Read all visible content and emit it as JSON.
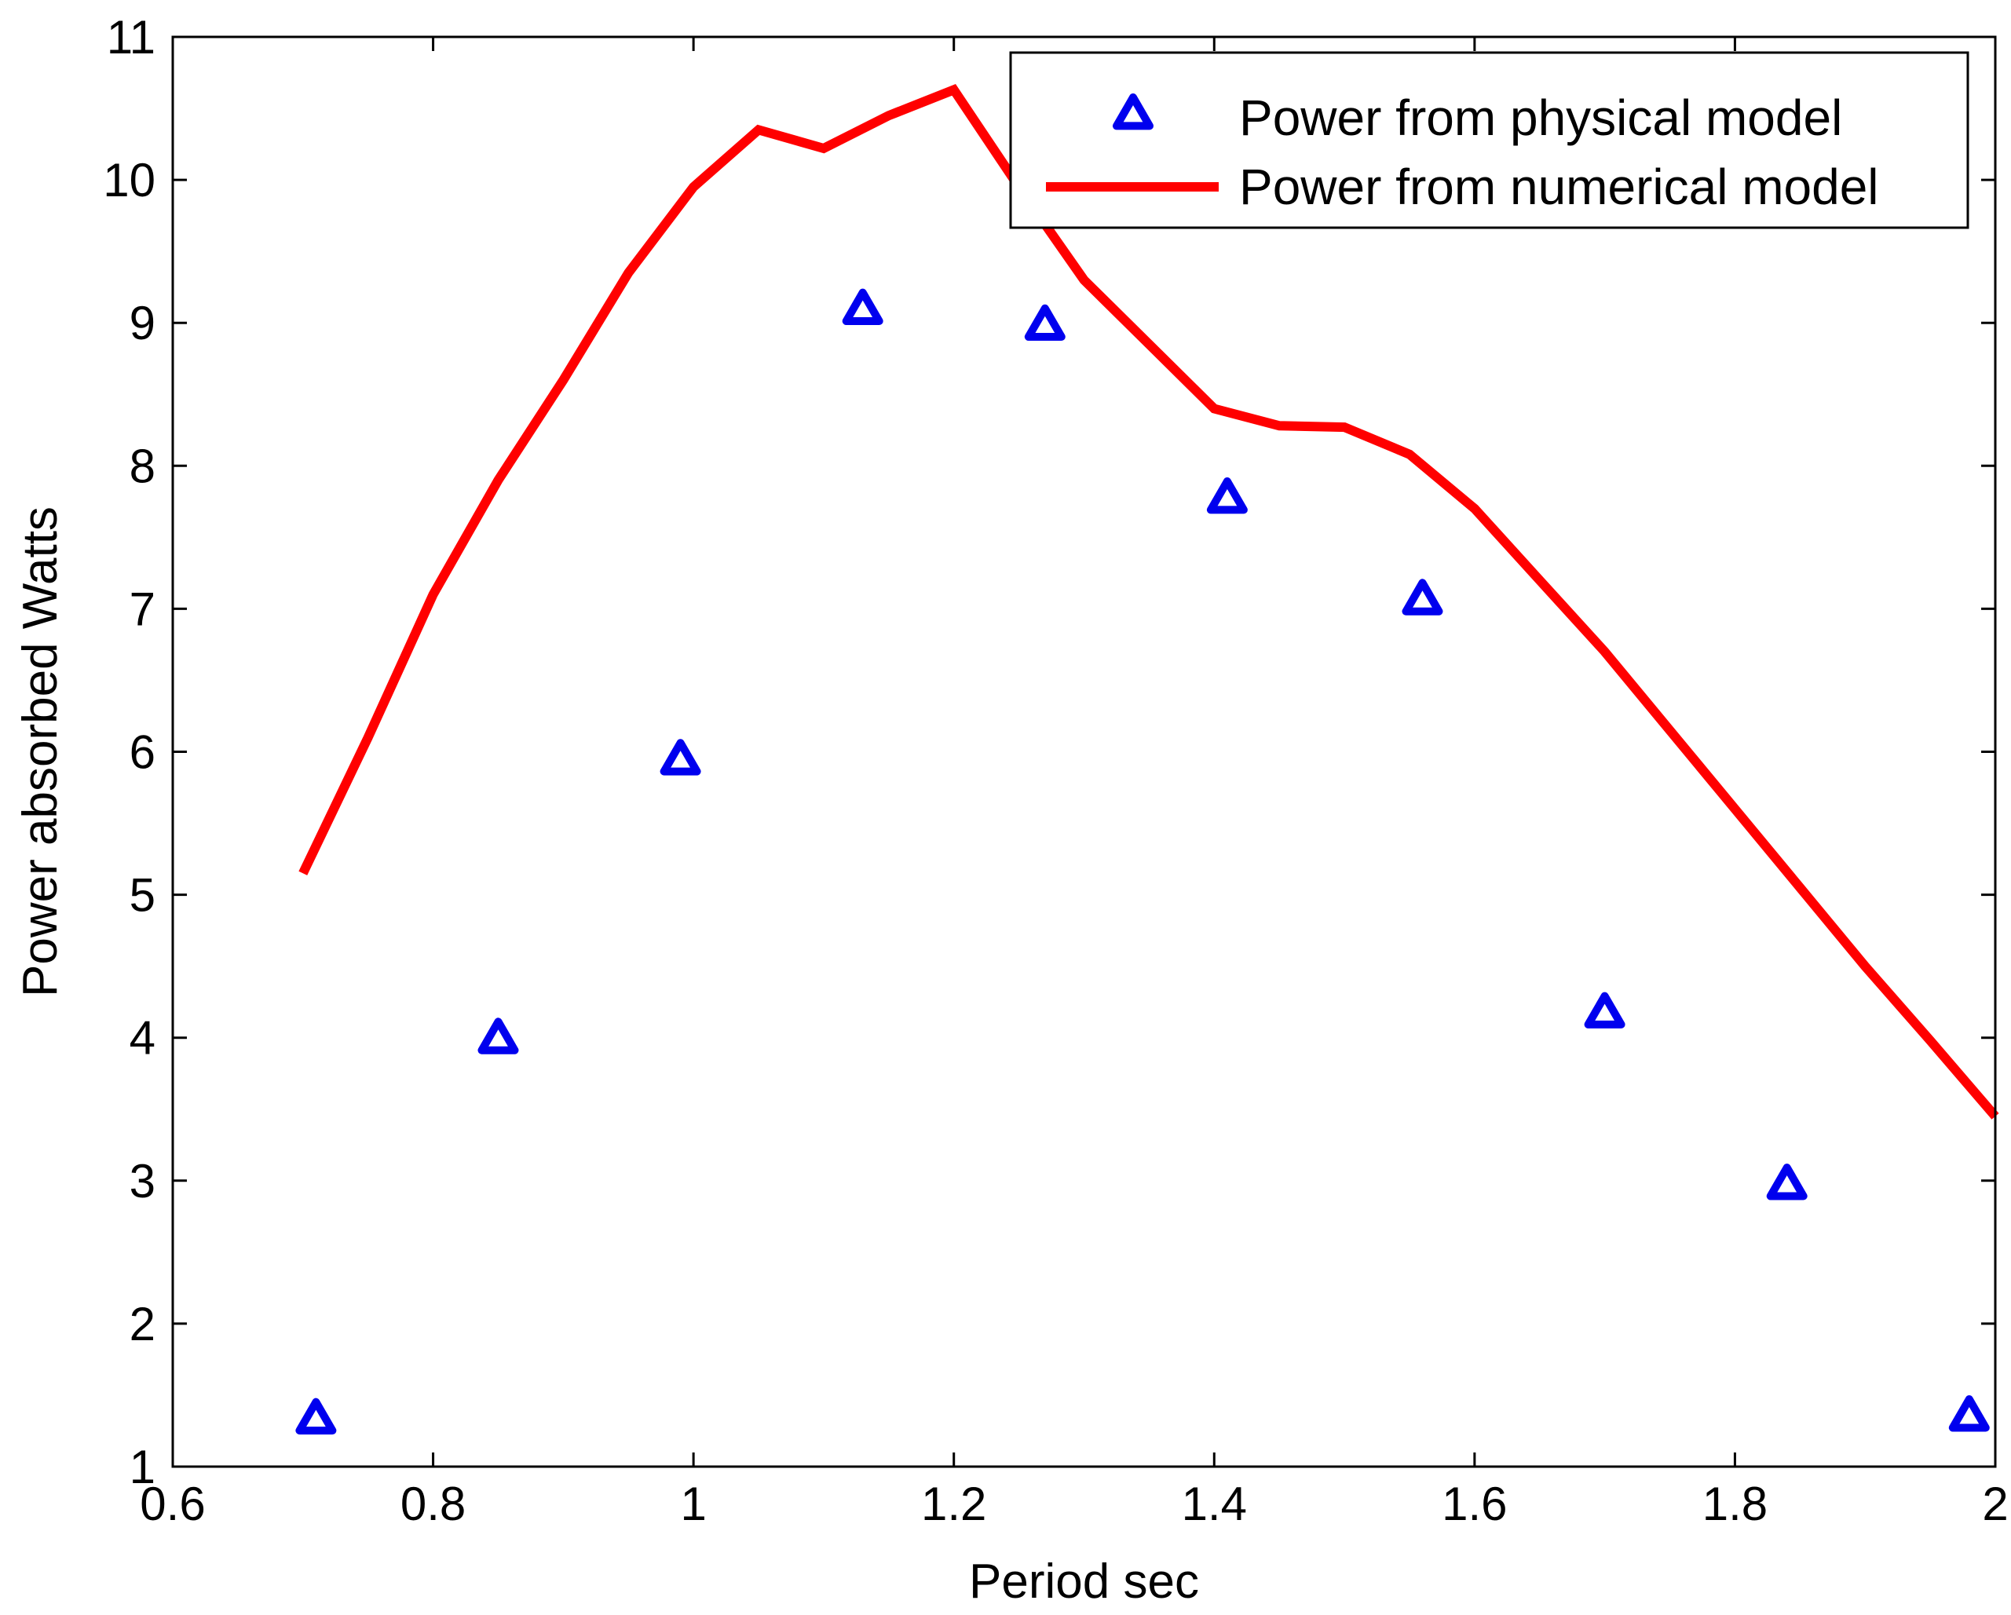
{
  "chart_data": {
    "type": "line",
    "title": "",
    "xlabel": "Period sec",
    "ylabel": "Power absorbed Watts",
    "xlim": [
      0.6,
      2
    ],
    "ylim": [
      1,
      11
    ],
    "grid": false,
    "legend_position": "top-right",
    "x_ticks": [
      0.6,
      0.8,
      1,
      1.2,
      1.4,
      1.6,
      1.8,
      2
    ],
    "x_tick_labels": [
      "0.6",
      "0.8",
      "1",
      "1.2",
      "1.4",
      "1.6",
      "1.8",
      "2"
    ],
    "y_ticks": [
      1,
      2,
      3,
      4,
      5,
      6,
      7,
      8,
      9,
      10,
      11
    ],
    "y_tick_labels": [
      "1",
      "2",
      "3",
      "4",
      "5",
      "6",
      "7",
      "8",
      "9",
      "10",
      "11"
    ],
    "series": [
      {
        "name": "Power from physical model",
        "kind": "scatter",
        "marker": "triangle",
        "color": "#0000ee",
        "x": [
          0.71,
          0.85,
          0.99,
          1.13,
          1.27,
          1.41,
          1.56,
          1.7,
          1.84,
          1.98
        ],
        "y": [
          1.32,
          3.98,
          5.93,
          9.08,
          8.97,
          7.76,
          7.05,
          4.16,
          2.96,
          1.34
        ]
      },
      {
        "name": "Power from numerical model",
        "kind": "line",
        "color": "#ff0000",
        "x": [
          0.7,
          0.75,
          0.8,
          0.85,
          0.9,
          0.95,
          1.0,
          1.05,
          1.1,
          1.15,
          1.2,
          1.25,
          1.3,
          1.35,
          1.4,
          1.45,
          1.5,
          1.55,
          1.6,
          1.65,
          1.7,
          1.75,
          1.8,
          1.85,
          1.9,
          1.95,
          2.0
        ],
        "y": [
          5.15,
          6.1,
          7.1,
          7.9,
          8.6,
          9.35,
          9.95,
          10.35,
          10.22,
          10.45,
          10.63,
          9.95,
          9.3,
          8.85,
          8.4,
          8.28,
          8.27,
          8.08,
          7.7,
          7.2,
          6.7,
          6.15,
          5.6,
          5.05,
          4.5,
          3.98,
          3.45
        ]
      }
    ]
  }
}
